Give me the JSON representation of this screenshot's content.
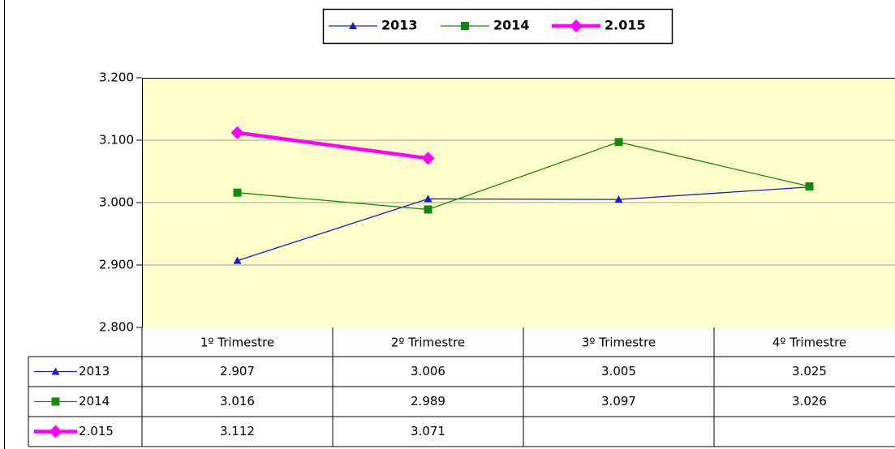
{
  "chart_data": {
    "type": "line",
    "categories": [
      "1º Trimestre",
      "2º Trimestre",
      "3º Trimestre",
      "4º Trimestre"
    ],
    "series": [
      {
        "name": "2013",
        "color": "#1a1ad0",
        "marker": "triangle",
        "line_width": 1.3,
        "values": [
          2907,
          3006,
          3005,
          3025
        ],
        "value_labels": [
          "2.907",
          "3.006",
          "3.005",
          "3.025"
        ]
      },
      {
        "name": "2014",
        "color": "#118a11",
        "marker": "square",
        "line_width": 1.3,
        "values": [
          3016,
          2989,
          3097,
          3026
        ],
        "value_labels": [
          "3.016",
          "2.989",
          "3.097",
          "3.026"
        ]
      },
      {
        "name": "2.015",
        "color": "#ff00ff",
        "marker": "diamond",
        "line_width": 4.5,
        "values": [
          3112,
          3071,
          null,
          null
        ],
        "value_labels": [
          "3.112",
          "3.071",
          null,
          null
        ]
      }
    ],
    "ylim": [
      2800,
      3200
    ],
    "yticks": [
      {
        "value": 2800,
        "label": "2.800"
      },
      {
        "value": 2900,
        "label": "2.900"
      },
      {
        "value": 3000,
        "label": "3.000"
      },
      {
        "value": 3100,
        "label": "3.100"
      },
      {
        "value": 3200,
        "label": "3.200"
      }
    ],
    "grid": true,
    "plot_background": "#ffffcc",
    "legend": "top"
  }
}
